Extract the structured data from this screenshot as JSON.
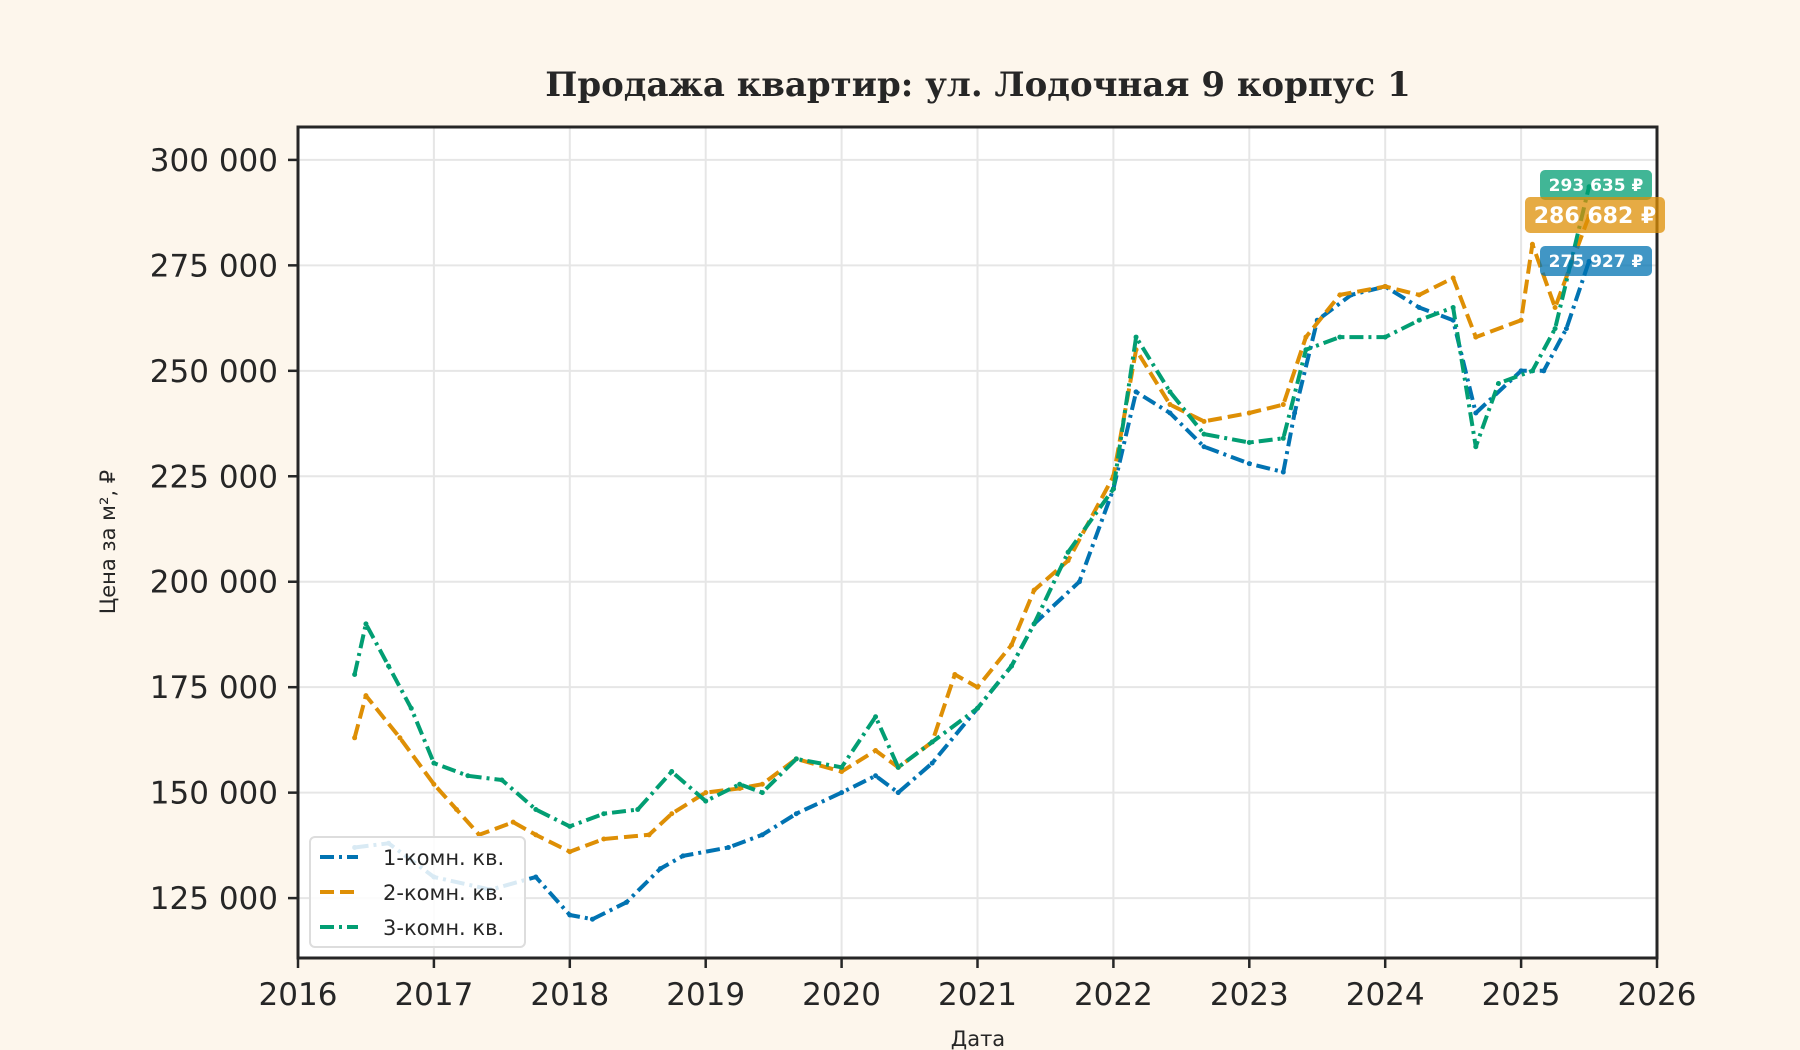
{
  "chart_data": {
    "type": "line",
    "title": "Продажа квартир: ул. Лодочная 9 корпус 1",
    "xlabel": "Дата",
    "ylabel": "Цена за м², ₽",
    "xlim": [
      "2016-01",
      "2026-01"
    ],
    "ylim": [
      110800,
      307800
    ],
    "x_ticks": [
      "2016",
      "2017",
      "2018",
      "2019",
      "2020",
      "2021",
      "2022",
      "2023",
      "2024",
      "2025",
      "2026"
    ],
    "y_ticks": [
      125000,
      150000,
      175000,
      200000,
      225000,
      250000,
      275000,
      300000
    ],
    "y_tick_labels": [
      "125 000",
      "150 000",
      "175 000",
      "200 000",
      "225 000",
      "250 000",
      "275 000",
      "300 000"
    ],
    "grid": true,
    "legend_position": "lower-left",
    "series": [
      {
        "name": "1-комн. кв.",
        "color": "#0173b2",
        "style": "dash-dot",
        "points": [
          [
            "2016-06",
            137000
          ],
          [
            "2016-09",
            138000
          ],
          [
            "2017-01",
            130000
          ],
          [
            "2017-06",
            127000
          ],
          [
            "2017-10",
            130000
          ],
          [
            "2018-01",
            121000
          ],
          [
            "2018-03",
            120000
          ],
          [
            "2018-06",
            124000
          ],
          [
            "2018-09",
            132000
          ],
          [
            "2018-11",
            135000
          ],
          [
            "2019-03",
            137000
          ],
          [
            "2019-06",
            140000
          ],
          [
            "2019-09",
            145000
          ],
          [
            "2020-01",
            150000
          ],
          [
            "2020-04",
            154000
          ],
          [
            "2020-06",
            150000
          ],
          [
            "2020-09",
            157000
          ],
          [
            "2021-01",
            170000
          ],
          [
            "2021-04",
            180000
          ],
          [
            "2021-06",
            190000
          ],
          [
            "2021-10",
            200000
          ],
          [
            "2022-01",
            222000
          ],
          [
            "2022-03",
            245000
          ],
          [
            "2022-06",
            240000
          ],
          [
            "2022-09",
            232000
          ],
          [
            "2023-01",
            228000
          ],
          [
            "2023-04",
            226000
          ],
          [
            "2023-05",
            240000
          ],
          [
            "2023-07",
            262000
          ],
          [
            "2023-10",
            268000
          ],
          [
            "2024-01",
            270000
          ],
          [
            "2024-04",
            265000
          ],
          [
            "2024-07",
            262000
          ],
          [
            "2024-09",
            240000
          ],
          [
            "2025-01",
            250000
          ],
          [
            "2025-03",
            250000
          ],
          [
            "2025-05",
            260000
          ],
          [
            "2025-07",
            275927
          ]
        ]
      },
      {
        "name": "2-комн. кв.",
        "color": "#de8f05",
        "style": "dashed",
        "points": [
          [
            "2016-06",
            163000
          ],
          [
            "2016-07",
            173000
          ],
          [
            "2016-10",
            163000
          ],
          [
            "2017-01",
            152000
          ],
          [
            "2017-03",
            146000
          ],
          [
            "2017-05",
            140000
          ],
          [
            "2017-08",
            143000
          ],
          [
            "2017-10",
            140000
          ],
          [
            "2018-01",
            136000
          ],
          [
            "2018-04",
            139000
          ],
          [
            "2018-08",
            140000
          ],
          [
            "2018-10",
            145000
          ],
          [
            "2019-01",
            150000
          ],
          [
            "2019-04",
            151000
          ],
          [
            "2019-06",
            152000
          ],
          [
            "2019-09",
            158000
          ],
          [
            "2020-01",
            155000
          ],
          [
            "2020-04",
            160000
          ],
          [
            "2020-06",
            156000
          ],
          [
            "2020-09",
            162000
          ],
          [
            "2020-11",
            178000
          ],
          [
            "2021-01",
            175000
          ],
          [
            "2021-04",
            185000
          ],
          [
            "2021-06",
            198000
          ],
          [
            "2021-09",
            205000
          ],
          [
            "2022-01",
            225000
          ],
          [
            "2022-03",
            255000
          ],
          [
            "2022-06",
            242000
          ],
          [
            "2022-09",
            238000
          ],
          [
            "2023-01",
            240000
          ],
          [
            "2023-04",
            242000
          ],
          [
            "2023-06",
            258000
          ],
          [
            "2023-09",
            268000
          ],
          [
            "2024-01",
            270000
          ],
          [
            "2024-04",
            268000
          ],
          [
            "2024-07",
            272000
          ],
          [
            "2024-09",
            258000
          ],
          [
            "2025-01",
            262000
          ],
          [
            "2025-02",
            280000
          ],
          [
            "2025-04",
            265000
          ],
          [
            "2025-07",
            286682
          ]
        ]
      },
      {
        "name": "3-комн. кв.",
        "color": "#029e73",
        "style": "dash-dot",
        "points": [
          [
            "2016-06",
            178000
          ],
          [
            "2016-07",
            190000
          ],
          [
            "2016-09",
            180000
          ],
          [
            "2016-11",
            170000
          ],
          [
            "2017-01",
            157000
          ],
          [
            "2017-04",
            154000
          ],
          [
            "2017-07",
            153000
          ],
          [
            "2017-10",
            146000
          ],
          [
            "2018-01",
            142000
          ],
          [
            "2018-04",
            145000
          ],
          [
            "2018-07",
            146000
          ],
          [
            "2018-10",
            155000
          ],
          [
            "2019-01",
            148000
          ],
          [
            "2019-04",
            152000
          ],
          [
            "2019-06",
            150000
          ],
          [
            "2019-09",
            158000
          ],
          [
            "2020-01",
            156000
          ],
          [
            "2020-04",
            168000
          ],
          [
            "2020-06",
            156000
          ],
          [
            "2020-09",
            162000
          ],
          [
            "2021-01",
            170000
          ],
          [
            "2021-04",
            180000
          ],
          [
            "2021-06",
            190000
          ],
          [
            "2021-09",
            207000
          ],
          [
            "2022-01",
            222000
          ],
          [
            "2022-03",
            258000
          ],
          [
            "2022-06",
            245000
          ],
          [
            "2022-09",
            235000
          ],
          [
            "2023-01",
            233000
          ],
          [
            "2023-04",
            234000
          ],
          [
            "2023-06",
            255000
          ],
          [
            "2023-09",
            258000
          ],
          [
            "2024-01",
            258000
          ],
          [
            "2024-04",
            262000
          ],
          [
            "2024-07",
            265000
          ],
          [
            "2024-09",
            232000
          ],
          [
            "2024-11",
            247000
          ],
          [
            "2025-02",
            250000
          ],
          [
            "2025-04",
            260000
          ],
          [
            "2025-07",
            293635
          ]
        ]
      }
    ],
    "annotations": [
      {
        "text": "293 635 ₽",
        "color": "#029e73",
        "value": 293635
      },
      {
        "text": "286 682 ₽",
        "color": "#de8f05",
        "value": 286682
      },
      {
        "text": "275 927 ₽",
        "color": "#0173b2",
        "value": 275927
      }
    ]
  }
}
